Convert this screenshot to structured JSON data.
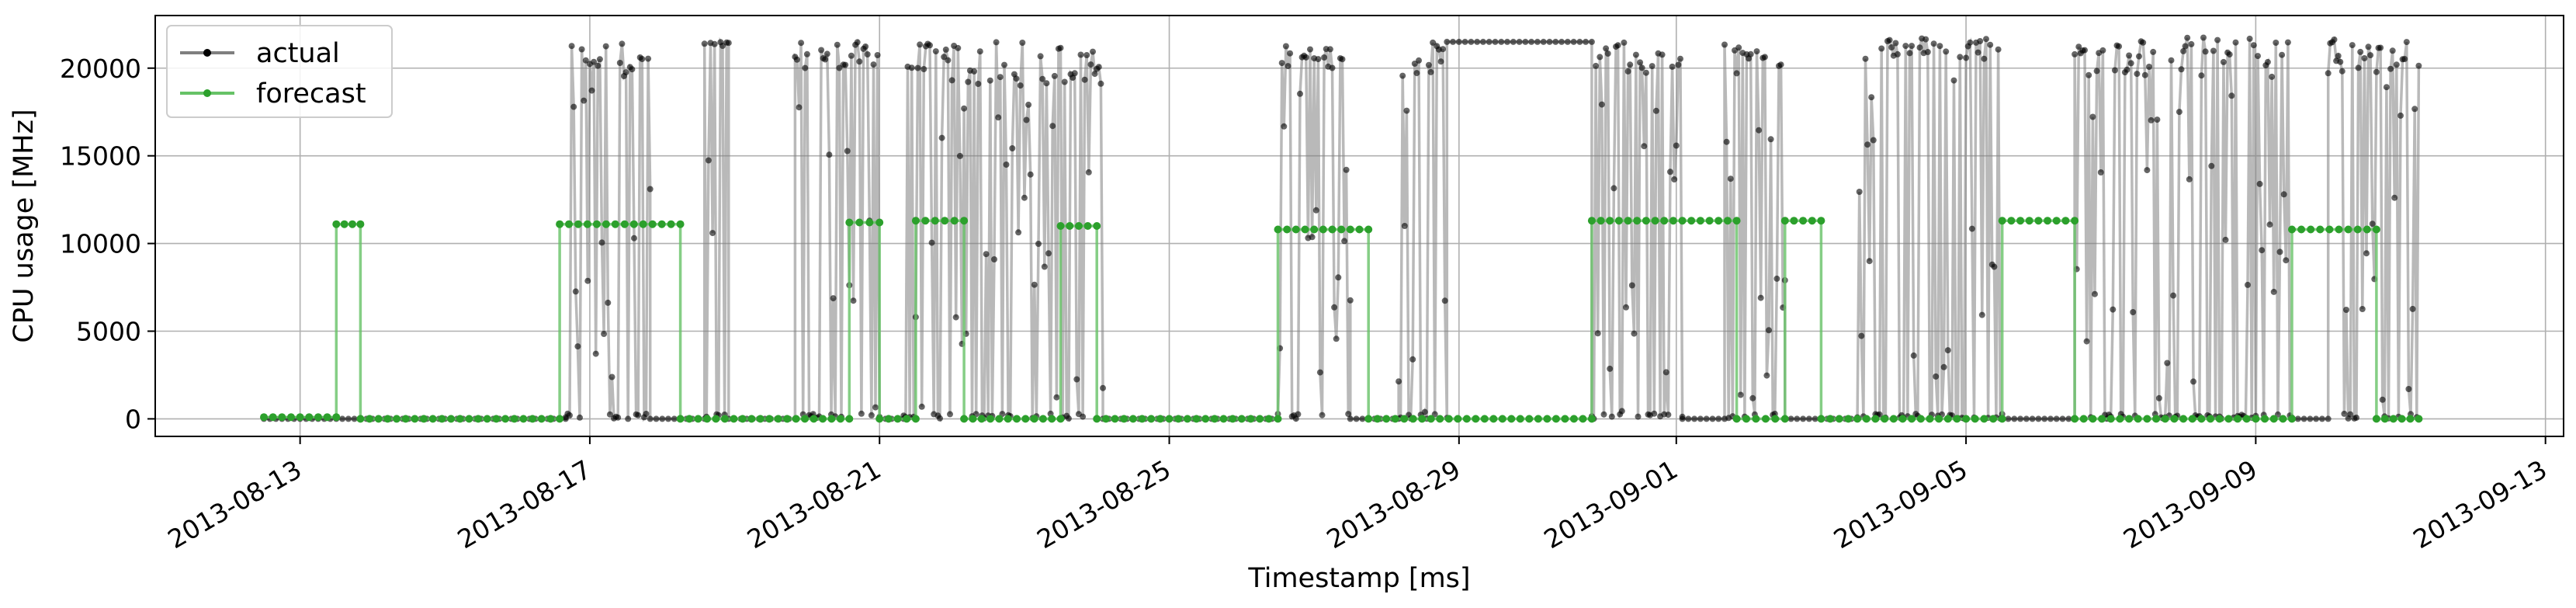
{
  "chart_data": {
    "type": "line",
    "title": "",
    "xlabel": "Timestamp [ms]",
    "ylabel": "CPU usage [MHz]",
    "xlim": [
      "2013-08-11T00:00:00",
      "2013-09-13T06:00:00"
    ],
    "ylim": [
      -1000,
      23000
    ],
    "grid": true,
    "legend": "top-left",
    "x_ticks": [
      "2013-08-13",
      "2013-08-17",
      "2013-08-21",
      "2013-08-25",
      "2013-08-29",
      "2013-09-01",
      "2013-09-05",
      "2013-09-09",
      "2013-09-13"
    ],
    "y_ticks": [
      0,
      5000,
      10000,
      15000,
      20000
    ],
    "y_tick_labels": [
      "0",
      "5000",
      "10000",
      "15000",
      "20000"
    ],
    "series": [
      {
        "name": "actual",
        "color": "#000000",
        "line_color": "#7f7f7f",
        "segments": [
          {
            "type": "flat",
            "start": "2013-08-12T12:00:00",
            "end": "2013-08-16T16:00:00",
            "value": 0
          },
          {
            "type": "noisy",
            "start": "2013-08-16T16:00:00",
            "end": "2013-08-17T20:00:00",
            "low": 0,
            "high": 21500,
            "topband": [
              19500,
              21500
            ]
          },
          {
            "type": "flat",
            "start": "2013-08-17T20:00:00",
            "end": "2013-08-18T14:00:00",
            "value": 0
          },
          {
            "type": "noisy",
            "start": "2013-08-18T14:00:00",
            "end": "2013-08-18T22:00:00",
            "low": 0,
            "high": 21500,
            "topband": [
              21200,
              21500
            ]
          },
          {
            "type": "flat",
            "start": "2013-08-18T22:00:00",
            "end": "2013-08-19T20:00:00",
            "value": 0
          },
          {
            "type": "noisy",
            "start": "2013-08-19T20:00:00",
            "end": "2013-08-21T00:00:00",
            "low": 0,
            "high": 21500,
            "topband": [
              20000,
              21500
            ]
          },
          {
            "type": "flat",
            "start": "2013-08-21T00:00:00",
            "end": "2013-08-21T08:00:00",
            "value": 0
          },
          {
            "type": "noisy",
            "start": "2013-08-21T08:00:00",
            "end": "2013-08-24T02:00:00",
            "low": 0,
            "high": 21500,
            "topband": [
              19000,
              21500
            ]
          },
          {
            "type": "flat",
            "start": "2013-08-24T02:00:00",
            "end": "2013-08-26T12:00:00",
            "value": 0
          },
          {
            "type": "noisy",
            "start": "2013-08-26T12:00:00",
            "end": "2013-08-27T12:00:00",
            "low": 0,
            "high": 21300,
            "topband": [
              20000,
              21300
            ]
          },
          {
            "type": "flat",
            "start": "2013-08-27T12:00:00",
            "end": "2013-08-28T04:00:00",
            "value": 0
          },
          {
            "type": "noisy",
            "start": "2013-08-28T04:00:00",
            "end": "2013-08-28T20:00:00",
            "low": 0,
            "high": 21500,
            "topband": [
              19500,
              21500
            ]
          },
          {
            "type": "flat",
            "start": "2013-08-28T20:00:00",
            "end": "2013-08-30T20:00:00",
            "value": 21500
          },
          {
            "type": "noisy",
            "start": "2013-08-30T20:00:00",
            "end": "2013-09-01T02:00:00",
            "low": 0,
            "high": 21500,
            "topband": [
              19500,
              21500
            ]
          },
          {
            "type": "flat",
            "start": "2013-09-01T02:00:00",
            "end": "2013-09-01T16:00:00",
            "value": 0
          },
          {
            "type": "noisy",
            "start": "2013-09-01T16:00:00",
            "end": "2013-09-02T12:00:00",
            "low": 0,
            "high": 21500,
            "topband": [
              20000,
              21500
            ]
          },
          {
            "type": "flat",
            "start": "2013-09-02T12:00:00",
            "end": "2013-09-03T12:00:00",
            "value": 0
          },
          {
            "type": "noisy",
            "start": "2013-09-03T12:00:00",
            "end": "2013-09-05T12:00:00",
            "low": 0,
            "high": 21800,
            "topband": [
              20500,
              21800
            ]
          },
          {
            "type": "flat",
            "start": "2013-09-05T12:00:00",
            "end": "2013-09-06T12:00:00",
            "value": 0
          },
          {
            "type": "noisy",
            "start": "2013-09-06T12:00:00",
            "end": "2013-09-09T12:00:00",
            "low": 0,
            "high": 21800,
            "topband": [
              19500,
              21800
            ]
          },
          {
            "type": "flat",
            "start": "2013-09-09T12:00:00",
            "end": "2013-09-10T00:00:00",
            "value": 0
          },
          {
            "type": "noisy",
            "start": "2013-09-10T00:00:00",
            "end": "2013-09-11T06:00:00",
            "low": 0,
            "high": 21800,
            "topband": [
              19500,
              21800
            ]
          }
        ]
      },
      {
        "name": "forecast",
        "color": "#2ca02c",
        "line_color": "#66c266",
        "segments": [
          {
            "type": "flat",
            "start": "2013-08-12T12:00:00",
            "end": "2013-08-13T12:00:00",
            "value": 100
          },
          {
            "type": "flat",
            "start": "2013-08-13T12:00:00",
            "end": "2013-08-13T20:00:00",
            "value": 11100
          },
          {
            "type": "flat",
            "start": "2013-08-13T20:00:00",
            "end": "2013-08-16T14:00:00",
            "value": 0
          },
          {
            "type": "flat",
            "start": "2013-08-16T14:00:00",
            "end": "2013-08-18T06:00:00",
            "value": 11100
          },
          {
            "type": "flat",
            "start": "2013-08-18T06:00:00",
            "end": "2013-08-20T14:00:00",
            "value": 0
          },
          {
            "type": "flat",
            "start": "2013-08-20T14:00:00",
            "end": "2013-08-21T00:00:00",
            "value": 11200
          },
          {
            "type": "flat",
            "start": "2013-08-21T00:00:00",
            "end": "2013-08-21T12:00:00",
            "value": 0
          },
          {
            "type": "flat",
            "start": "2013-08-21T12:00:00",
            "end": "2013-08-22T04:00:00",
            "value": 11300
          },
          {
            "type": "flat",
            "start": "2013-08-22T04:00:00",
            "end": "2013-08-23T12:00:00",
            "value": 0
          },
          {
            "type": "flat",
            "start": "2013-08-23T12:00:00",
            "end": "2013-08-24T00:00:00",
            "value": 11000
          },
          {
            "type": "flat",
            "start": "2013-08-24T00:00:00",
            "end": "2013-08-26T12:00:00",
            "value": 0
          },
          {
            "type": "flat",
            "start": "2013-08-26T12:00:00",
            "end": "2013-08-27T18:00:00",
            "value": 10800
          },
          {
            "type": "flat",
            "start": "2013-08-27T18:00:00",
            "end": "2013-08-30T20:00:00",
            "value": 0
          },
          {
            "type": "flat",
            "start": "2013-08-30T20:00:00",
            "end": "2013-09-01T20:00:00",
            "value": 11300
          },
          {
            "type": "flat",
            "start": "2013-09-01T20:00:00",
            "end": "2013-09-02T12:00:00",
            "value": 0
          },
          {
            "type": "flat",
            "start": "2013-09-02T12:00:00",
            "end": "2013-09-03T00:00:00",
            "value": 11300
          },
          {
            "type": "flat",
            "start": "2013-09-03T00:00:00",
            "end": "2013-09-05T12:00:00",
            "value": 0
          },
          {
            "type": "flat",
            "start": "2013-09-05T12:00:00",
            "end": "2013-09-06T12:00:00",
            "value": 11300
          },
          {
            "type": "flat",
            "start": "2013-09-06T12:00:00",
            "end": "2013-09-09T12:00:00",
            "value": 0
          },
          {
            "type": "flat",
            "start": "2013-09-09T12:00:00",
            "end": "2013-09-10T16:00:00",
            "value": 10800
          },
          {
            "type": "flat",
            "start": "2013-09-10T16:00:00",
            "end": "2013-09-11T06:00:00",
            "value": 0
          }
        ]
      }
    ]
  }
}
